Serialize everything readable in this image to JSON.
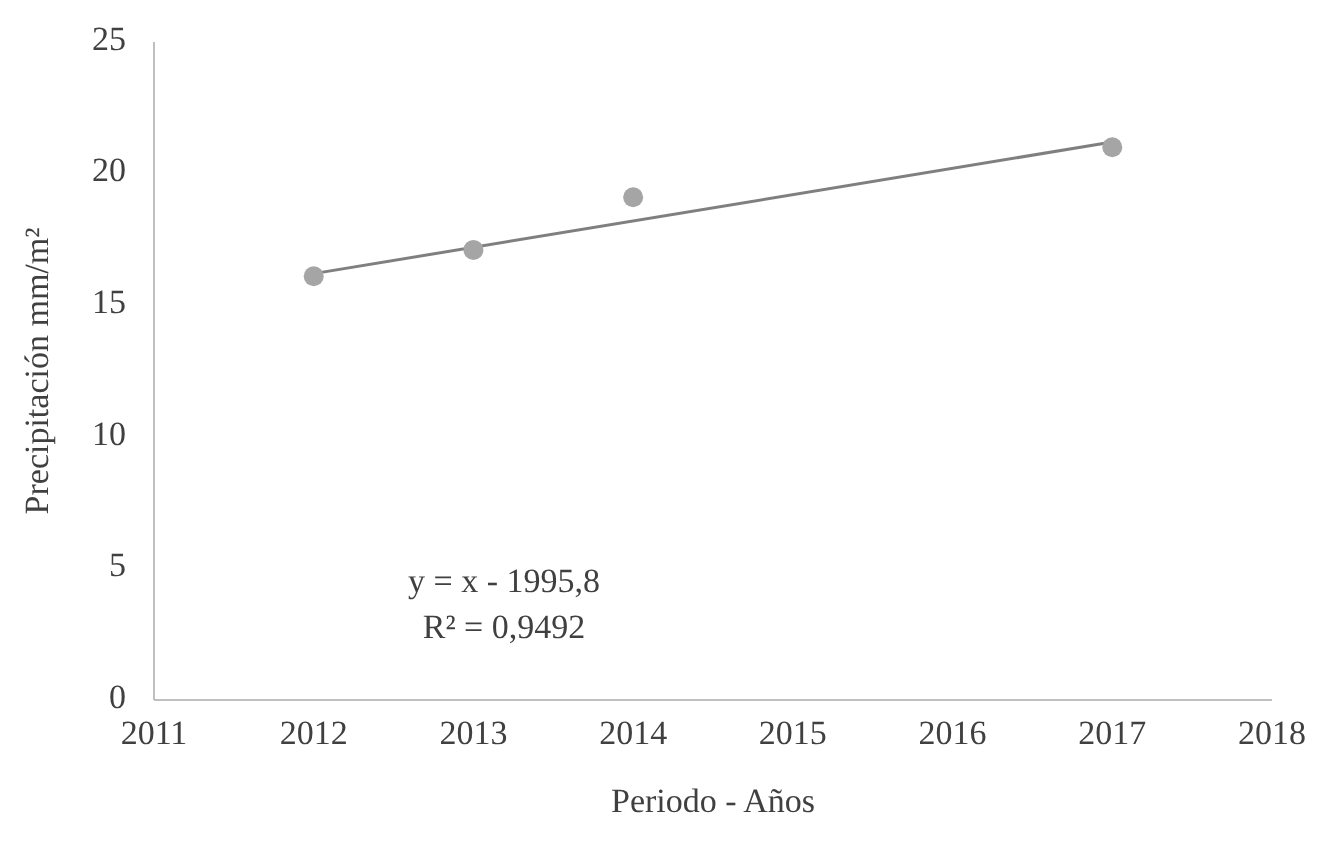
{
  "chart_data": {
    "type": "scatter",
    "xlabel": "Periodo  - Años",
    "ylabel": "Precipitación mm/m²",
    "x": [
      2012,
      2013,
      2014,
      2017
    ],
    "marker": "circle",
    "series": [
      {
        "color": "#a5a5a5",
        "values": [
          16.1,
          17.1,
          19.1,
          21.0
        ]
      },
      {
        "type": "line",
        "color": "#7f7f7f",
        "x": [
          2012,
          2017
        ],
        "values": [
          16.2,
          21.2
        ],
        "marker": "none"
      }
    ],
    "xlim": [
      2011,
      2018
    ],
    "xticks": [
      2011,
      2012,
      2013,
      2014,
      2015,
      2016,
      2017,
      2018
    ],
    "ylim": [
      0,
      25
    ],
    "yticks": [
      0,
      5,
      10,
      15,
      20,
      25
    ],
    "grid": false,
    "annotations": [
      "y = x - 1995,8",
      "R² = 0,9492"
    ]
  }
}
